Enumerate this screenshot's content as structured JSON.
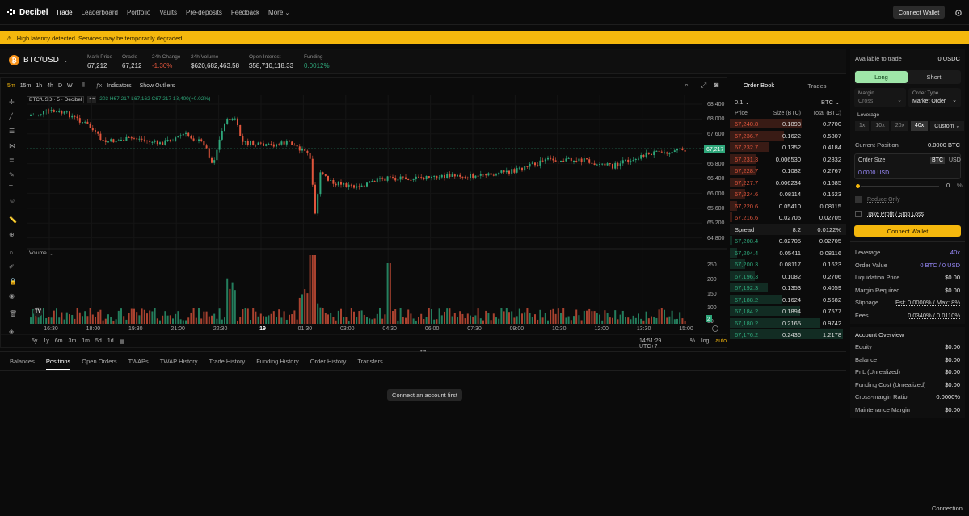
{
  "app": {
    "name": "Decibel"
  },
  "nav": {
    "items": [
      "Trade",
      "Leaderboard",
      "Portfolio",
      "Vaults",
      "Pre-deposits",
      "Feedback",
      "More"
    ]
  },
  "header": {
    "connect_wallet": "Connect Wallet"
  },
  "banner": {
    "text": "High latency detected. Services may be temporarily degraded."
  },
  "market": {
    "symbol": "BTC/USD",
    "stats": [
      {
        "label": "Mark Price",
        "value": "67,212"
      },
      {
        "label": "Oracle",
        "value": "67,212"
      },
      {
        "label": "24h Change",
        "value": "-1.36%"
      },
      {
        "label": "24h Volume",
        "value": "$620,682,463.58"
      },
      {
        "label": "Open Interest",
        "value": "$58,710,118.33"
      },
      {
        "label": "Funding",
        "value": "0.0012%"
      }
    ]
  },
  "chart": {
    "intervals": [
      "5m",
      "15m",
      "1h",
      "4h",
      "D",
      "W"
    ],
    "indicators": "Indicators",
    "outliers": "Show Outliers",
    "legend_symbol": "BTC/USD · 5 · Decibel",
    "legend_ohlc": "203 H67,217 L67,162 C67,217 13,400(+0.02%)",
    "price_ticks": [
      "68,400",
      "68,000",
      "67,600",
      "67,217",
      "66,800",
      "66,400",
      "66,000",
      "65,600",
      "65,200",
      "64,800"
    ],
    "current_price": "67,217",
    "volume_label": "Volume",
    "volume_ticks": [
      "250",
      "200",
      "150",
      "100",
      "50"
    ],
    "volume_badge": "2",
    "time_ticks": [
      "16:30",
      "18:00",
      "19:30",
      "21:00",
      "22:30",
      "19",
      "01:30",
      "03:00",
      "04:30",
      "06:00",
      "07:30",
      "09:00",
      "10:30",
      "12:00",
      "13:30",
      "15:00"
    ],
    "ranges": [
      "5y",
      "1y",
      "6m",
      "3m",
      "1m",
      "5d",
      "1d"
    ],
    "clock": "14:51:29 UTC+7",
    "scale_opts": [
      "%",
      "log",
      "auto"
    ]
  },
  "orderbook": {
    "tabs": [
      "Order Book",
      "Trades"
    ],
    "tick": "0.1",
    "unit": "BTC",
    "headers": [
      "Price",
      "Size (BTC)",
      "Total (BTC)"
    ],
    "asks": [
      [
        "67,240.8",
        "0.1893",
        "0.7700"
      ],
      [
        "67,236.7",
        "0.1622",
        "0.5807"
      ],
      [
        "67,232.7",
        "0.1352",
        "0.4184"
      ],
      [
        "67,231.3",
        "0.006530",
        "0.2832"
      ],
      [
        "67,228.7",
        "0.1082",
        "0.2767"
      ],
      [
        "67,227.7",
        "0.006234",
        "0.1685"
      ],
      [
        "67,224.6",
        "0.08114",
        "0.1623"
      ],
      [
        "67,220.6",
        "0.05410",
        "0.08115"
      ],
      [
        "67,216.6",
        "0.02705",
        "0.02705"
      ]
    ],
    "spread": {
      "label": "Spread",
      "value": "8.2",
      "pct": "0.0122%"
    },
    "bids": [
      [
        "67,208.4",
        "0.02705",
        "0.02705"
      ],
      [
        "67,204.4",
        "0.05411",
        "0.08116"
      ],
      [
        "67,200.3",
        "0.08117",
        "0.1623"
      ],
      [
        "67,196.3",
        "0.1082",
        "0.2706"
      ],
      [
        "67,192.3",
        "0.1353",
        "0.4059"
      ],
      [
        "67,188.2",
        "0.1624",
        "0.5682"
      ],
      [
        "67,184.2",
        "0.1894",
        "0.7577"
      ],
      [
        "67,180.2",
        "0.2165",
        "0.9742"
      ],
      [
        "67,176.2",
        "0.2436",
        "1.2178"
      ]
    ]
  },
  "bottom": {
    "tabs": [
      "Balances",
      "Positions",
      "Open Orders",
      "TWAPs",
      "TWAP History",
      "Trade History",
      "Funding History",
      "Order History",
      "Transfers"
    ],
    "empty": "Connect an account first"
  },
  "order": {
    "available_label": "Available to trade",
    "available_value": "0 USDC",
    "long": "Long",
    "short": "Short",
    "margin_label": "Margin",
    "margin_value": "Cross",
    "type_label": "Order Type",
    "type_value": "Market Order",
    "leverage_label": "Leverage",
    "leverage_opts": [
      "1x",
      "10x",
      "20x",
      "40x",
      "Custom"
    ],
    "position_label": "Current Position",
    "position_value": "0.0000 BTC",
    "size_label": "Order Size",
    "size_units": [
      "BTC",
      "USD"
    ],
    "size_usd": "0.0000 USD",
    "slider_value": "0",
    "slider_unit": "%",
    "reduce_only": "Reduce Only",
    "tpsl": "Take Profit / Stop Loss",
    "connect": "Connect Wallet",
    "summary": [
      {
        "label": "Leverage",
        "value": "40x"
      },
      {
        "label": "Order Value",
        "value": "0 BTC / 0 USD"
      },
      {
        "label": "Liquidation Price",
        "value": "$0.00"
      },
      {
        "label": "Margin Required",
        "value": "$0.00"
      },
      {
        "label": "Slippage",
        "value": "Est: 0.0000% / Max: 8%"
      },
      {
        "label": "Fees",
        "value": "0.0340% / 0.0110%"
      }
    ]
  },
  "account": {
    "title": "Account Overview",
    "rows": [
      {
        "label": "Equity",
        "value": "$0.00"
      },
      {
        "label": "Balance",
        "value": "$0.00"
      },
      {
        "label": "PnL (Unrealized)",
        "value": "$0.00"
      },
      {
        "label": "Funding Cost (Unrealized)",
        "value": "$0.00"
      },
      {
        "label": "Cross-margin Ratio",
        "value": "0.0000%"
      },
      {
        "label": "Maintenance Margin",
        "value": "$0.00"
      }
    ]
  },
  "footer": {
    "status": "Connection"
  },
  "colors": {
    "accent": "#f5b80d",
    "up": "#2ea67a",
    "down": "#e0553c",
    "long_bg": "#9fe6a9",
    "link": "#9b8cff"
  }
}
